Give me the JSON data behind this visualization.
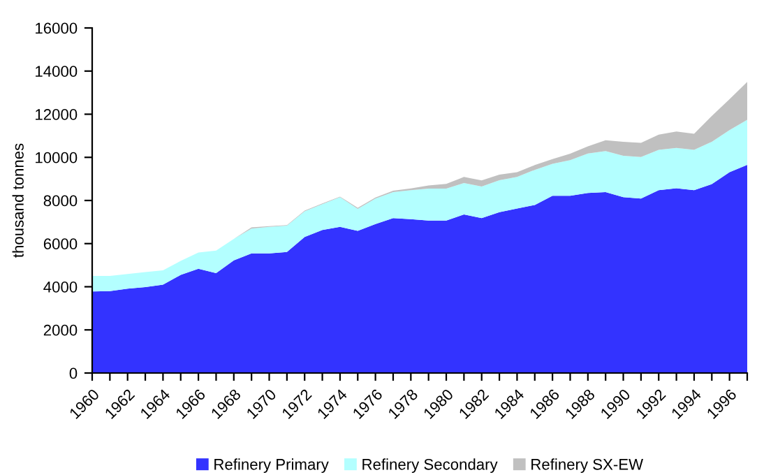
{
  "chart_data": {
    "type": "area",
    "stacked": true,
    "ylabel": "thousand tonnes",
    "categories": [
      "1960",
      null,
      "1962",
      null,
      "1964",
      null,
      "1966",
      null,
      "1968",
      null,
      "1970",
      null,
      "1972",
      null,
      "1974",
      null,
      "1976",
      null,
      "1978",
      null,
      "1980",
      null,
      "1982",
      null,
      "1984",
      null,
      "1986",
      null,
      "1988",
      null,
      "1990",
      null,
      "1992",
      null,
      "1994",
      null,
      "1996",
      null
    ],
    "series": [
      {
        "name": "Refinery Primary",
        "color": "#3333ff",
        "values": [
          3780,
          3800,
          3910,
          3980,
          4100,
          4550,
          4830,
          4630,
          5220,
          5550,
          5550,
          5610,
          6310,
          6630,
          6780,
          6590,
          6910,
          7180,
          7130,
          7070,
          7070,
          7350,
          7180,
          7460,
          7630,
          7790,
          8220,
          8220,
          8350,
          8390,
          8150,
          8090,
          8480,
          8570,
          8480,
          8760,
          9310,
          9650
        ]
      },
      {
        "name": "Refinery Secondary",
        "color": "#b3ffff",
        "values": [
          720,
          700,
          680,
          700,
          660,
          650,
          760,
          1050,
          1000,
          1150,
          1230,
          1220,
          1190,
          1200,
          1370,
          1020,
          1180,
          1210,
          1350,
          1480,
          1480,
          1460,
          1470,
          1480,
          1460,
          1630,
          1480,
          1650,
          1830,
          1900,
          1920,
          1930,
          1870,
          1870,
          1870,
          1960,
          1950,
          2090
        ]
      },
      {
        "name": "Refinery SX-EW",
        "color": "#c0c0c0",
        "values": [
          0,
          0,
          0,
          0,
          0,
          0,
          0,
          0,
          0,
          50,
          30,
          30,
          30,
          30,
          30,
          50,
          50,
          60,
          80,
          150,
          220,
          280,
          280,
          260,
          220,
          220,
          220,
          300,
          330,
          500,
          650,
          650,
          700,
          760,
          740,
          1200,
          1440,
          1760
        ]
      }
    ],
    "ylim": [
      0,
      16000
    ],
    "yticks": [
      0,
      2000,
      4000,
      6000,
      8000,
      10000,
      12000,
      14000,
      16000
    ],
    "grid": false,
    "legend": "bottom"
  }
}
